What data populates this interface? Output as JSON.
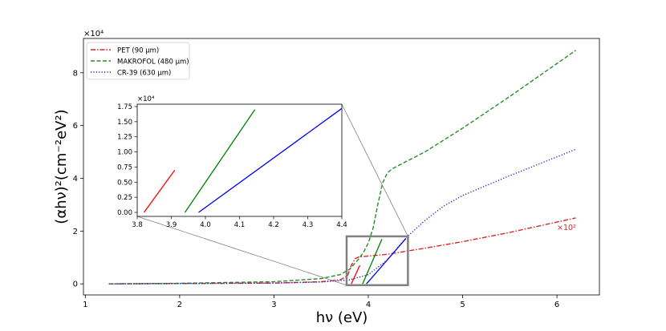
{
  "chart_data": [
    {
      "type": "line",
      "xlabel": "hν (eV)",
      "ylabel": "(αhν)²(cm⁻²eV²)",
      "y_multiplier": "×10⁴",
      "xlim": [
        0.98,
        6.45
      ],
      "ylim": [
        -0.42,
        9.3
      ],
      "x_ticks": [
        1,
        2,
        3,
        4,
        5,
        6
      ],
      "y_ticks": [
        0,
        2,
        4,
        6,
        8
      ],
      "legend_position": "top-left",
      "series": [
        {
          "name": "PET (90 μm)",
          "color": "#d62728",
          "dash": "dashdot",
          "x": [
            1.25,
            2.0,
            3.0,
            3.5,
            3.7,
            3.78,
            3.82,
            3.86,
            3.9,
            4.2,
            4.6,
            5.0,
            5.5,
            6.2
          ],
          "y": [
            0.0,
            0.01,
            0.03,
            0.08,
            0.15,
            0.3,
            0.7,
            0.95,
            1.02,
            1.12,
            1.35,
            1.6,
            1.95,
            2.5
          ]
        },
        {
          "name": "MAKROFOL (480 μm)",
          "color": "#2a8a2a",
          "dash": "dashed",
          "x": [
            1.25,
            2.0,
            3.0,
            3.5,
            3.7,
            3.8,
            3.85,
            3.9,
            3.95,
            4.0,
            4.05,
            4.1,
            4.15,
            4.2,
            4.25,
            4.3,
            4.6,
            5.0,
            5.5,
            6.2
          ],
          "y": [
            0.0,
            0.02,
            0.08,
            0.2,
            0.35,
            0.55,
            0.75,
            0.95,
            1.2,
            1.55,
            2.1,
            3.0,
            3.8,
            4.2,
            4.35,
            4.45,
            5.0,
            5.9,
            7.1,
            8.85
          ]
        },
        {
          "name": "CR-39 (630 μm)",
          "color": "#1f1fd6",
          "dash": "dotted",
          "x": [
            1.25,
            2.0,
            3.0,
            3.5,
            3.8,
            4.0,
            4.2,
            4.4,
            4.6,
            4.8,
            5.0,
            5.5,
            6.2
          ],
          "y": [
            0.0,
            0.01,
            0.03,
            0.07,
            0.15,
            0.35,
            0.9,
            1.75,
            2.4,
            2.95,
            3.35,
            4.1,
            5.1
          ]
        }
      ],
      "annotation": "×10²",
      "zoom_box": {
        "x": [
          3.77,
          4.42
        ],
        "y": [
          -0.05,
          1.8
        ]
      }
    },
    {
      "type": "line",
      "title": "",
      "y_multiplier": "×10⁴",
      "xlim": [
        3.8,
        4.4
      ],
      "ylim": [
        -0.05,
        1.75
      ],
      "x_ticks": [
        "3.8",
        "3.9",
        "4.0",
        "4.1",
        "4.2",
        "4.3",
        "4.4"
      ],
      "y_ticks": [
        "0.00",
        "0.25",
        "0.50",
        "0.75",
        "1.00",
        "1.25",
        "1.50",
        "1.75"
      ],
      "series": [
        {
          "color": "#ff0000",
          "x": [
            3.82,
            3.91
          ],
          "y": [
            0.0,
            0.7
          ]
        },
        {
          "color": "#008000",
          "x": [
            3.94,
            4.145
          ],
          "y": [
            0.0,
            1.7
          ]
        },
        {
          "color": "#0000ff",
          "x": [
            3.98,
            4.4
          ],
          "y": [
            0.0,
            1.72
          ]
        }
      ]
    }
  ]
}
